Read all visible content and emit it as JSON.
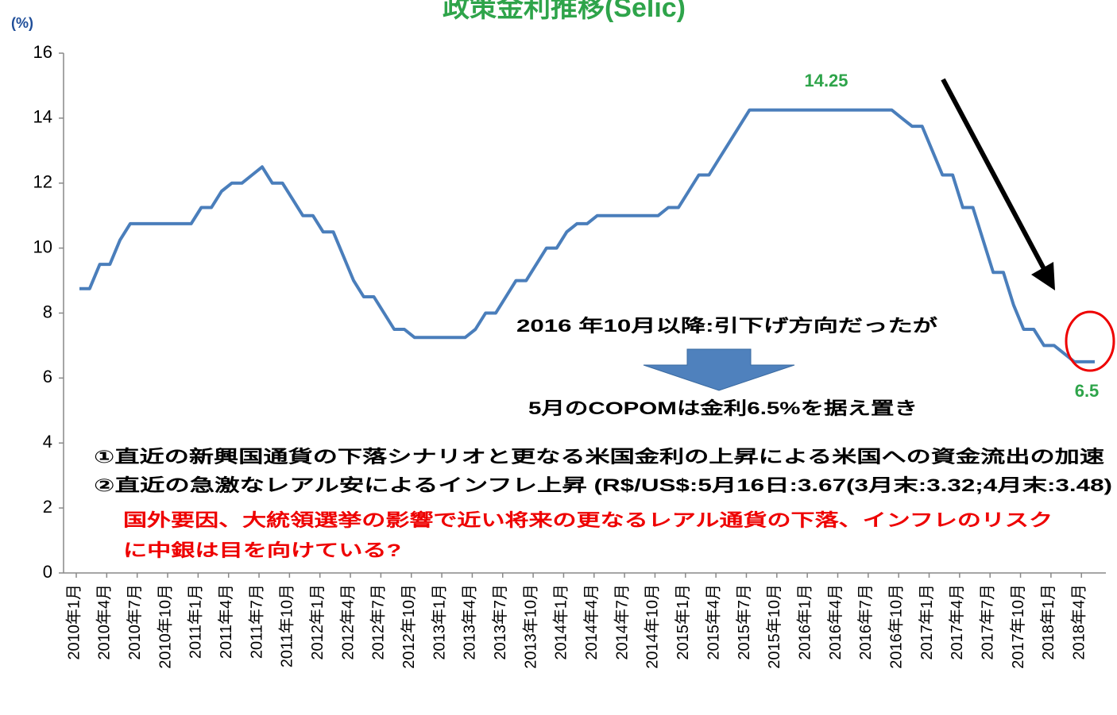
{
  "chart_data": {
    "type": "line",
    "title": "政策金利推移(Selic)",
    "y_label": "(%)",
    "categories": [
      "2010年1月",
      null,
      null,
      "2010年4月",
      null,
      null,
      "2010年7月",
      null,
      null,
      "2010年10月",
      null,
      null,
      "2011年1月",
      null,
      null,
      "2011年4月",
      null,
      null,
      "2011年7月",
      null,
      null,
      "2011年10月",
      null,
      null,
      "2012年1月",
      null,
      null,
      "2012年4月",
      null,
      null,
      "2012年7月",
      null,
      null,
      "2012年10月",
      null,
      null,
      "2013年1月",
      null,
      null,
      "2013年4月",
      null,
      null,
      "2013年7月",
      null,
      null,
      "2013年10月",
      null,
      null,
      "2014年1月",
      null,
      null,
      "2014年4月",
      null,
      null,
      "2014年7月",
      null,
      null,
      "2014年10月",
      null,
      null,
      "2015年1月",
      null,
      null,
      "2015年4月",
      null,
      null,
      "2015年7月",
      null,
      null,
      "2015年10月",
      null,
      null,
      "2016年1月",
      null,
      null,
      "2016年4月",
      null,
      null,
      "2016年7月",
      null,
      null,
      "2016年10月",
      null,
      null,
      "2017年1月",
      null,
      null,
      "2017年4月",
      null,
      null,
      "2017年7月",
      null,
      null,
      "2017年10月",
      null,
      null,
      "2018年1月",
      null,
      null,
      "2018年4月",
      null
    ],
    "series": [
      {
        "name": "Selic",
        "color": "#4a7ebb",
        "values": [
          8.75,
          8.75,
          9.5,
          9.5,
          10.25,
          10.75,
          10.75,
          10.75,
          10.75,
          10.75,
          10.75,
          10.75,
          11.25,
          11.25,
          11.75,
          12,
          12,
          12.25,
          12.5,
          12,
          12,
          11.5,
          11,
          11,
          10.5,
          10.5,
          9.75,
          9,
          8.5,
          8.5,
          8,
          7.5,
          7.5,
          7.25,
          7.25,
          7.25,
          7.25,
          7.25,
          7.25,
          7.5,
          8,
          8,
          8.5,
          9,
          9,
          9.5,
          10,
          10,
          10.5,
          10.75,
          10.75,
          11,
          11,
          11,
          11,
          11,
          11,
          11,
          11.25,
          11.25,
          11.75,
          12.25,
          12.25,
          12.75,
          13.25,
          13.75,
          14.25,
          14.25,
          14.25,
          14.25,
          14.25,
          14.25,
          14.25,
          14.25,
          14.25,
          14.25,
          14.25,
          14.25,
          14.25,
          14.25,
          14.25,
          14,
          13.75,
          13.75,
          13,
          12.25,
          12.25,
          11.25,
          11.25,
          10.25,
          9.25,
          9.25,
          8.25,
          7.5,
          7.5,
          7,
          7,
          6.75,
          6.5,
          6.5,
          6.5
        ]
      }
    ],
    "ylim": [
      0,
      16
    ],
    "yticks": [
      0,
      2,
      4,
      6,
      8,
      10,
      12,
      14,
      16
    ],
    "annotations": [
      "14.25",
      "6.5",
      "2016 年10月以降:引下げ方向だったが",
      "5月のCOPOMは金利6.5%を据え置き",
      "①直近の新興国通貨の下落シナリオと更なる米国金利の上昇による米国への資金流出の加速",
      "②直近の急激なレアル安によるインフレ上昇 (R$/US$:5月16日:3.67(3月末:3.32;4月末:3.48)",
      "国外要因、大統領選挙の影響で近い将来の更なるレアル通貨の下落、インフレのリスク",
      "に中銀は目を向けている?"
    ]
  }
}
